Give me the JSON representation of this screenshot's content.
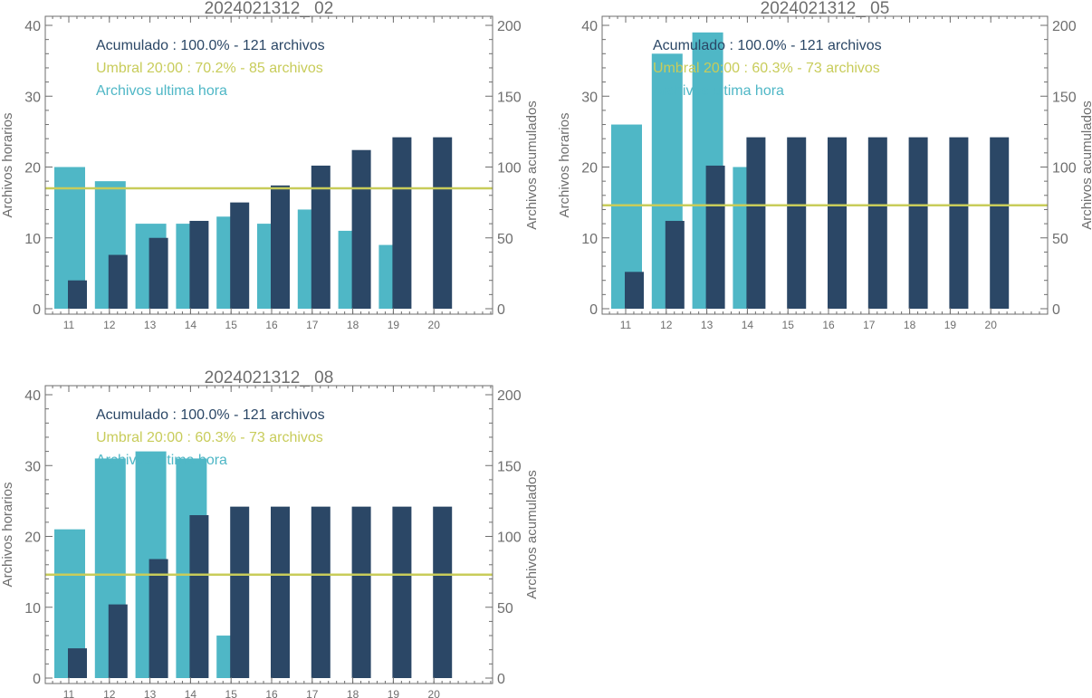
{
  "colors": {
    "hourly": "#4fb7c6",
    "cumulative": "#2b4766",
    "threshold": "#c8cc5a",
    "axis": "#6e6e6e",
    "text": "#6e6e6e"
  },
  "chart_data": [
    {
      "type": "bar",
      "title": "2024021312_ 02",
      "ylabel": "Archivos horarios",
      "ylabel_right": "Archivos acumulados",
      "ylim": [
        0,
        40
      ],
      "ylim_right": [
        0,
        200
      ],
      "yticks": [
        "0",
        "10",
        "20",
        "30",
        "40"
      ],
      "yticks_right": [
        "0",
        "50",
        "100",
        "150",
        "200"
      ],
      "categories": [
        "11",
        "12",
        "13",
        "14",
        "15",
        "16",
        "17",
        "18",
        "19",
        "20"
      ],
      "legend": [
        {
          "text": "Acumulado : 100.0% - 121 archivos",
          "series": "cumulative"
        },
        {
          "text": "Umbral 20:00 : 70.2% - 85 archivos",
          "series": "threshold"
        },
        {
          "text": "Archivos ultima hora",
          "series": "hourly"
        }
      ],
      "series": [
        {
          "name": "Archivos ultima hora",
          "axis": "left",
          "values": [
            20,
            18,
            12,
            12,
            13,
            12,
            14,
            11,
            9,
            null
          ]
        },
        {
          "name": "Acumulado",
          "axis": "right",
          "values": [
            20,
            38,
            50,
            62,
            75,
            87,
            101,
            112,
            121,
            121
          ]
        }
      ],
      "threshold": {
        "axis": "right",
        "value": 85
      }
    },
    {
      "type": "bar",
      "title": "2024021312_ 05",
      "ylabel": "Archivos horarios",
      "ylabel_right": "Archivos acumulados",
      "ylim": [
        0,
        40
      ],
      "ylim_right": [
        0,
        200
      ],
      "yticks": [
        "0",
        "10",
        "20",
        "30",
        "40"
      ],
      "yticks_right": [
        "0",
        "50",
        "100",
        "150",
        "200"
      ],
      "categories": [
        "11",
        "12",
        "13",
        "14",
        "15",
        "16",
        "17",
        "18",
        "19",
        "20"
      ],
      "legend": [
        {
          "text": "Acumulado : 100.0% - 121 archivos",
          "series": "cumulative"
        },
        {
          "text": "Umbral 20:00 : 60.3% - 73 archivos",
          "series": "threshold"
        },
        {
          "text": "Archivos ultima hora",
          "series": "hourly"
        }
      ],
      "series": [
        {
          "name": "Archivos ultima hora",
          "axis": "left",
          "values": [
            26,
            36,
            39,
            20,
            null,
            null,
            null,
            null,
            null,
            null
          ]
        },
        {
          "name": "Acumulado",
          "axis": "right",
          "values": [
            26,
            62,
            101,
            121,
            121,
            121,
            121,
            121,
            121,
            121
          ]
        }
      ],
      "threshold": {
        "axis": "right",
        "value": 73
      }
    },
    {
      "type": "bar",
      "title": "2024021312_ 08",
      "ylabel": "Archivos horarios",
      "ylabel_right": "Archivos acumulados",
      "ylim": [
        0,
        40
      ],
      "ylim_right": [
        0,
        200
      ],
      "yticks": [
        "0",
        "10",
        "20",
        "30",
        "40"
      ],
      "yticks_right": [
        "0",
        "50",
        "100",
        "150",
        "200"
      ],
      "categories": [
        "11",
        "12",
        "13",
        "14",
        "15",
        "16",
        "17",
        "18",
        "19",
        "20"
      ],
      "legend": [
        {
          "text": "Acumulado : 100.0% - 121 archivos",
          "series": "cumulative"
        },
        {
          "text": "Umbral 20:00 : 60.3% - 73 archivos",
          "series": "threshold"
        },
        {
          "text": "Archivos ultima hora",
          "series": "hourly"
        }
      ],
      "series": [
        {
          "name": "Archivos ultima hora",
          "axis": "left",
          "values": [
            21,
            31,
            32,
            31,
            6,
            null,
            null,
            null,
            null,
            null
          ]
        },
        {
          "name": "Acumulado",
          "axis": "right",
          "values": [
            21,
            52,
            84,
            115,
            121,
            121,
            121,
            121,
            121,
            121
          ]
        }
      ],
      "threshold": {
        "axis": "right",
        "value": 73
      }
    }
  ]
}
